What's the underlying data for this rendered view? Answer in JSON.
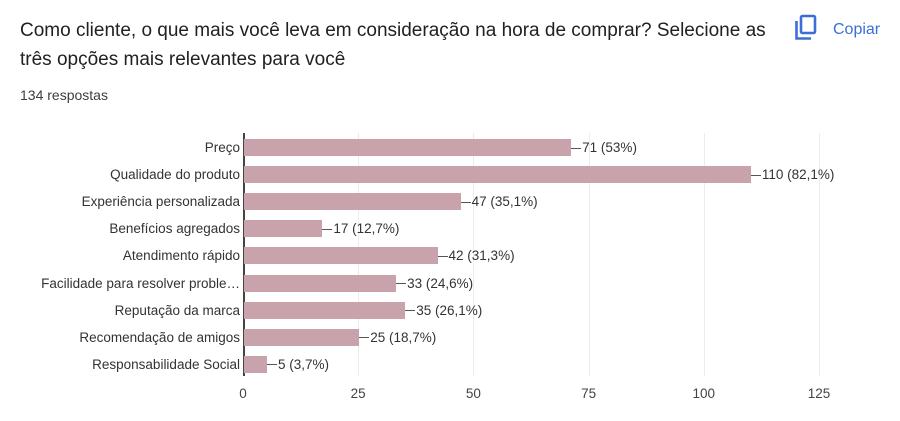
{
  "header": {
    "title": "Como cliente, o que mais você leva em consideração na hora de comprar? Selecione as três opções mais relevantes para você",
    "responses": "134 respostas",
    "copy_label": "Copiar",
    "copy_icon": "copy-icon"
  },
  "colors": {
    "bar": "#c9a3ab",
    "accent": "#3b6fd6",
    "text": "#202124"
  },
  "chart_data": {
    "type": "bar",
    "orientation": "horizontal",
    "title": "Como cliente, o que mais você leva em consideração na hora de comprar? Selecione as três opções mais relevantes para você",
    "xlabel": "",
    "ylabel": "",
    "xlim": [
      0,
      125
    ],
    "x_ticks": [
      "0",
      "25",
      "50",
      "75",
      "100",
      "125"
    ],
    "grid": true,
    "legend": "none",
    "categories": [
      "Preço",
      "Qualidade do produto",
      "Experiência personalizada",
      "Benefícios agregados",
      "Atendimento rápido",
      "Facilidade para resolver proble…",
      "Reputação da marca",
      "Recomendação de amigos",
      "Responsabilidade Social"
    ],
    "values": [
      71,
      110,
      47,
      17,
      42,
      33,
      35,
      25,
      5
    ],
    "percentages": [
      "53%",
      "82,1%",
      "35,1%",
      "12,7%",
      "31,3%",
      "24,6%",
      "26,1%",
      "18,7%",
      "3,7%"
    ],
    "data_labels": [
      "71 (53%)",
      "110 (82,1%)",
      "47 (35,1%)",
      "17 (12,7%)",
      "42 (31,3%)",
      "33 (24,6%)",
      "35 (26,1%)",
      "25 (18,7%)",
      "5 (3,7%)"
    ]
  }
}
